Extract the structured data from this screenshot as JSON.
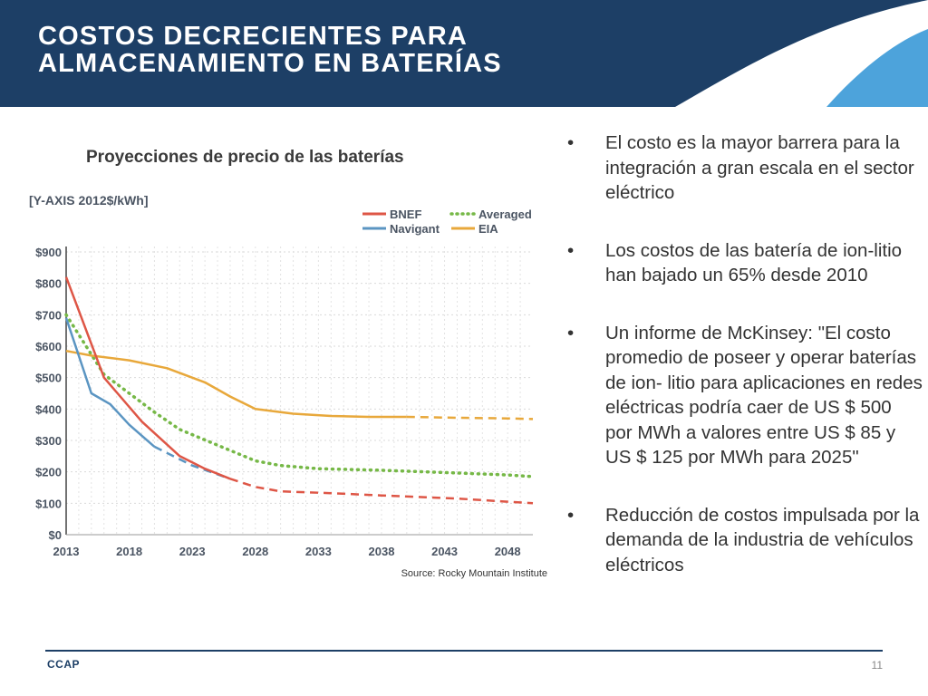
{
  "slide": {
    "title_line1": "COSTOS DECRECIENTES PARA",
    "title_line2": "ALMACENAMIENTO EN BATERÍAS",
    "header_color": "#1d3f66",
    "accent_light": "#4da3db"
  },
  "chart_title": "Proyecciones de precio de las baterías",
  "source": "Source: Rocky Mountain Institute",
  "chart_data": {
    "type": "line",
    "title": "Proyecciones de precio de las baterías",
    "ylabel": "[Y-AXIS 2012$/kWh]",
    "xlabel": "",
    "xlim": [
      2013,
      2050
    ],
    "ylim": [
      0,
      900
    ],
    "xticks": [
      2013,
      2018,
      2023,
      2028,
      2033,
      2038,
      2043,
      2048
    ],
    "xtick_labels": [
      "2013",
      "2018",
      "2023",
      "2028",
      "2033",
      "2038",
      "2043",
      "2048"
    ],
    "yticks": [
      0,
      100,
      200,
      300,
      400,
      500,
      600,
      700,
      800,
      900
    ],
    "ytick_labels": [
      "$0",
      "$100",
      "$200",
      "$300",
      "$400",
      "$500",
      "$600",
      "$700",
      "$800",
      "$900"
    ],
    "grid": true,
    "legend_position": "top-right",
    "series": [
      {
        "name": "BNEF",
        "color": "#de5646",
        "style": "solid-then-dashed",
        "solid": [
          [
            2013,
            820
          ],
          [
            2016,
            500
          ],
          [
            2019,
            360
          ],
          [
            2022,
            250
          ],
          [
            2024,
            210
          ],
          [
            2026,
            178
          ]
        ],
        "dashed": [
          [
            2026,
            178
          ],
          [
            2028,
            152
          ],
          [
            2030,
            138
          ],
          [
            2034,
            132
          ],
          [
            2038,
            125
          ],
          [
            2044,
            115
          ],
          [
            2048,
            105
          ],
          [
            2050,
            100
          ]
        ]
      },
      {
        "name": "Navigant",
        "color": "#5b95c2",
        "style": "solid-then-dashed",
        "solid": [
          [
            2013,
            690
          ],
          [
            2015,
            450
          ],
          [
            2016.5,
            415
          ],
          [
            2018,
            350
          ],
          [
            2020,
            280
          ]
        ],
        "dashed": [
          [
            2020,
            280
          ],
          [
            2023,
            220
          ],
          [
            2026,
            178
          ]
        ]
      },
      {
        "name": "Averaged",
        "color": "#76b847",
        "style": "dotted",
        "points": [
          [
            2013,
            700
          ],
          [
            2016,
            510
          ],
          [
            2018,
            450
          ],
          [
            2020,
            390
          ],
          [
            2022,
            335
          ],
          [
            2025,
            285
          ],
          [
            2028,
            235
          ],
          [
            2030,
            220
          ],
          [
            2033,
            210
          ],
          [
            2038,
            205
          ],
          [
            2043,
            198
          ],
          [
            2048,
            190
          ],
          [
            2050,
            185
          ]
        ]
      },
      {
        "name": "EIA",
        "color": "#e8a83b",
        "style": "solid-then-dashed",
        "solid": [
          [
            2013,
            585
          ],
          [
            2015,
            570
          ],
          [
            2018,
            555
          ],
          [
            2021,
            530
          ],
          [
            2024,
            485
          ],
          [
            2026,
            440
          ],
          [
            2028,
            400
          ],
          [
            2031,
            385
          ],
          [
            2034,
            378
          ],
          [
            2037,
            375
          ],
          [
            2040,
            375
          ]
        ],
        "dashed": [
          [
            2040,
            375
          ],
          [
            2044,
            372
          ],
          [
            2048,
            370
          ],
          [
            2050,
            368
          ]
        ]
      }
    ]
  },
  "bullets": [
    "El costo es la mayor barrera para la integración a gran escala en el sector eléctrico",
    "Los costos de las batería de ion-litio han bajado un 65% desde 2010",
    "Un informe de McKinsey: \"El costo promedio de poseer y operar baterías de ion- litio para aplicaciones en redes eléctricas podría caer de US $ 500 por MWh a valores entre US $ 85 y US $ 125 por MWh para 2025\"",
    "Reducción de costos impulsada por la demanda de la industria de vehículos eléctricos"
  ],
  "bullet_char": "•",
  "footer": {
    "brand": "CCAP",
    "page_number": "11"
  }
}
